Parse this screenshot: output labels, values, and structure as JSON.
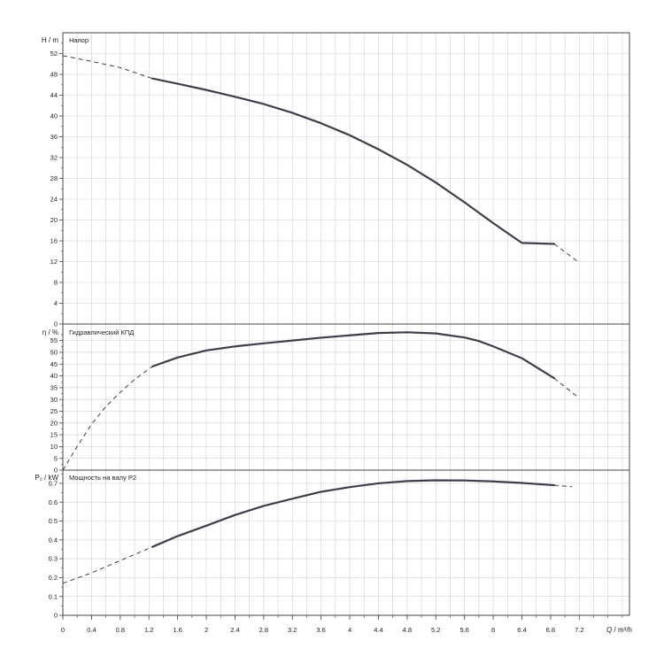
{
  "colors": {
    "grid": "#d0d0d0",
    "frame": "#444444",
    "curve": "#3a3f4b"
  },
  "chart_data": {
    "type": "line",
    "x_axis": {
      "label": "Q / m³/h",
      "range": [
        0,
        7.9
      ],
      "ticks": [
        0,
        0.4,
        0.8,
        1.2,
        1.6,
        2,
        2.4,
        2.8,
        3.2,
        3.6,
        4,
        4.4,
        4.8,
        5.2,
        5.6,
        6,
        6.4,
        6.8,
        7.2
      ],
      "tick_labels": [
        "0",
        "0.4",
        "0.8",
        "1.2",
        "1.6",
        "2",
        "2.4",
        "2.8",
        "3.2",
        "3.6",
        "4",
        "4.4",
        "4.8",
        "5.2",
        "5.6",
        "6",
        "6.4",
        "6.8",
        "7.2"
      ]
    },
    "grid": true,
    "panels": [
      {
        "id": "head",
        "title": "Напор",
        "ylabel": "H / m",
        "ylim": [
          0,
          56
        ],
        "yticks": [
          0,
          4,
          8,
          12,
          16,
          20,
          24,
          28,
          32,
          36,
          40,
          44,
          48,
          52
        ],
        "ytick_labels": [
          "0",
          "4",
          "8",
          "12",
          "16",
          "20",
          "24",
          "28",
          "32",
          "36",
          "40",
          "44",
          "48",
          "52"
        ],
        "solid": [
          [
            1.25,
            47.2
          ],
          [
            1.6,
            46.2
          ],
          [
            2.0,
            45.0
          ],
          [
            2.4,
            43.7
          ],
          [
            2.8,
            42.3
          ],
          [
            3.2,
            40.6
          ],
          [
            3.6,
            38.6
          ],
          [
            4.0,
            36.3
          ],
          [
            4.4,
            33.6
          ],
          [
            4.8,
            30.6
          ],
          [
            5.2,
            27.2
          ],
          [
            5.6,
            23.4
          ],
          [
            6.0,
            19.4
          ],
          [
            6.4,
            15.6
          ],
          [
            6.85,
            15.4
          ]
        ],
        "dashed_start": [
          [
            0,
            51.6
          ],
          [
            0.4,
            50.5
          ],
          [
            0.8,
            49.3
          ],
          [
            1.25,
            47.2
          ]
        ],
        "dashed_end": [
          [
            6.85,
            15.4
          ],
          [
            7.2,
            11.8
          ]
        ]
      },
      {
        "id": "efficiency",
        "title": "Гидравлический КПД",
        "ylabel": "η / %",
        "ylim": [
          0,
          62
        ],
        "yticks": [
          0,
          5,
          10,
          15,
          20,
          25,
          30,
          35,
          40,
          45,
          50,
          55
        ],
        "ytick_labels": [
          "0",
          "5",
          "10",
          "15",
          "20",
          "25",
          "30",
          "35",
          "40",
          "45",
          "50",
          "55"
        ],
        "solid": [
          [
            1.25,
            44.0
          ],
          [
            1.6,
            47.8
          ],
          [
            2.0,
            50.8
          ],
          [
            2.4,
            52.5
          ],
          [
            2.8,
            53.8
          ],
          [
            3.2,
            55.0
          ],
          [
            3.6,
            56.2
          ],
          [
            4.0,
            57.2
          ],
          [
            4.4,
            58.2
          ],
          [
            4.8,
            58.5
          ],
          [
            5.2,
            58.0
          ],
          [
            5.6,
            56.3
          ],
          [
            5.8,
            54.8
          ],
          [
            6.0,
            52.5
          ],
          [
            6.4,
            47.5
          ],
          [
            6.85,
            39.0
          ]
        ],
        "dashed_start": [
          [
            0,
            0
          ],
          [
            0.2,
            10.0
          ],
          [
            0.4,
            19.5
          ],
          [
            0.6,
            27.0
          ],
          [
            0.8,
            33.0
          ],
          [
            1.0,
            38.5
          ],
          [
            1.25,
            44.0
          ]
        ],
        "dashed_end": [
          [
            6.85,
            39.0
          ],
          [
            7.2,
            30.5
          ]
        ]
      },
      {
        "id": "power",
        "title": "Мощность на валу P2",
        "ylabel": "P₂ / kW",
        "ylim": [
          0,
          0.77
        ],
        "yticks": [
          0,
          0.1,
          0.2,
          0.3,
          0.4,
          0.5,
          0.6,
          0.7
        ],
        "ytick_labels": [
          "0",
          "0.1",
          "0.2",
          "0.3",
          "0.4",
          "0.5",
          "0.6",
          "0.7"
        ],
        "solid": [
          [
            1.25,
            0.363
          ],
          [
            1.6,
            0.42
          ],
          [
            2.0,
            0.475
          ],
          [
            2.4,
            0.532
          ],
          [
            2.8,
            0.58
          ],
          [
            3.2,
            0.618
          ],
          [
            3.6,
            0.655
          ],
          [
            4.0,
            0.68
          ],
          [
            4.4,
            0.7
          ],
          [
            4.8,
            0.712
          ],
          [
            5.2,
            0.716
          ],
          [
            5.6,
            0.715
          ],
          [
            6.0,
            0.71
          ],
          [
            6.4,
            0.702
          ],
          [
            6.85,
            0.69
          ]
        ],
        "dashed_start": [
          [
            0,
            0.17
          ],
          [
            0.4,
            0.225
          ],
          [
            0.8,
            0.29
          ],
          [
            1.25,
            0.363
          ]
        ],
        "dashed_end": [
          [
            6.85,
            0.69
          ],
          [
            7.1,
            0.682
          ]
        ]
      }
    ]
  }
}
